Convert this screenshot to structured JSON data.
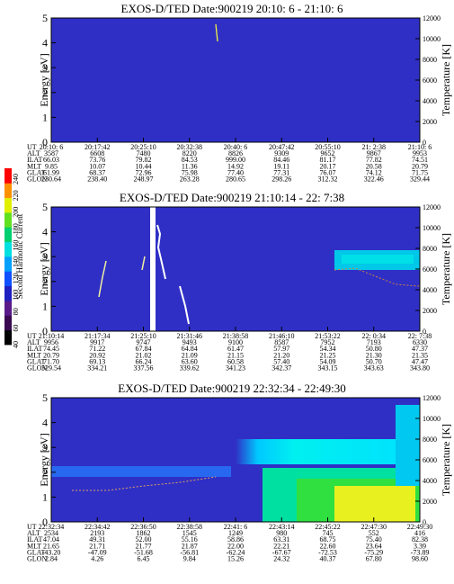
{
  "colorbar": {
    "title": "Second Harmonic Current",
    "ticks": [
      "40",
      "60",
      "80",
      "100",
      "120",
      "140",
      "160",
      "180",
      "200",
      "220",
      "240"
    ],
    "colors": [
      "#000000",
      "#3a0a50",
      "#5a1a8a",
      "#2020c0",
      "#1050ff",
      "#00a0ff",
      "#00e0e0",
      "#00d070",
      "#60e020",
      "#e0f000",
      "#ff9000",
      "#ff0000"
    ]
  },
  "panels": [
    {
      "title": "EXOS-D/TED   Date:900219  20:10: 6 - 21:10: 6",
      "ylabel": "Energy [eV]",
      "ylabel_right": "Temperature [K]",
      "bg": "#2f2fc6",
      "row_labels": [
        "UT",
        "ALT",
        "ILAT",
        "MLT",
        "GLAT",
        "GLON"
      ],
      "columns": [
        [
          "20:10: 6",
          "3587",
          "66.03",
          "9.85",
          "61.99",
          "230.64"
        ],
        [
          "20:17:42",
          "6608",
          "73.76",
          "10.07",
          "68.37",
          "238.40"
        ],
        [
          "20:25:10",
          "7480",
          "79.82",
          "10.44",
          "72.96",
          "248.97"
        ],
        [
          "20:32:38",
          "8220",
          "84.53",
          "11.36",
          "75.98",
          "263.28"
        ],
        [
          "20:40: 6",
          "8826",
          "999.00",
          "14.92",
          "77.40",
          "280.65"
        ],
        [
          "20:47:42",
          "9309",
          "84.46",
          "19.11",
          "77.31",
          "298.26"
        ],
        [
          "20:55:10",
          "9652",
          "81.17",
          "20.17",
          "76.07",
          "312.32"
        ],
        [
          "21: 2:38",
          "9867",
          "77.82",
          "20.58",
          "74.12",
          "322.46"
        ],
        [
          "21:10: 6",
          "9953",
          "74.51",
          "20.79",
          "71.75",
          "329.44"
        ]
      ]
    },
    {
      "title": "EXOS-D/TED   Date:900219  21:10:14 - 22: 7:38",
      "ylabel": "Energy [eV]",
      "ylabel_right": "Temperature [K]",
      "bg": "#2f2fc6",
      "row_labels": [
        "UT",
        "ALT",
        "ILAT",
        "MLT",
        "GLAT",
        "GLON"
      ],
      "columns": [
        [
          "21:10:14",
          "9956",
          "74.45",
          "20.79",
          "71.70",
          "329.54"
        ],
        [
          "21:17:34",
          "9917",
          "71.22",
          "20.92",
          "69.13",
          "334.21"
        ],
        [
          "21:25:10",
          "9747",
          "67.84",
          "21.02",
          "66.24",
          "337.56"
        ],
        [
          "21:31:46",
          "9493",
          "64.84",
          "21.09",
          "63.60",
          "339.62"
        ],
        [
          "21:38:58",
          "9100",
          "61.47",
          "21.15",
          "60.58",
          "341.23"
        ],
        [
          "21:46:10",
          "8587",
          "57.97",
          "21.20",
          "57.40",
          "342.37"
        ],
        [
          "21:53:22",
          "7952",
          "54.34",
          "21.25",
          "54.09",
          "343.15"
        ],
        [
          "22: 0:34",
          "7193",
          "50.80",
          "21.30",
          "50.70",
          "343.63"
        ],
        [
          "22: 7:38",
          "6330",
          "47.37",
          "21.35",
          "47.47",
          "343.80"
        ]
      ]
    },
    {
      "title": "EXOS-D/TED   Date:900219  22:32:34 - 22:49:30",
      "ylabel": "Energy [eV]",
      "ylabel_right": "Temperature [K]",
      "bg": "#2f2fc6",
      "row_labels": [
        "UT",
        "ALT",
        "ILAT",
        "MLT",
        "GLAT",
        "GLON"
      ],
      "columns": [
        [
          "22:32:34",
          "2534",
          "47.04",
          "21.65",
          "-43.20",
          "2.84"
        ],
        [
          "22:34:42",
          "2193",
          "49.31",
          "21.71",
          "-47.09",
          "4.26"
        ],
        [
          "22:36:50",
          "1862",
          "52.00",
          "21.77",
          "-51.68",
          "6.45"
        ],
        [
          "22:38:58",
          "1545",
          "55.16",
          "21.87",
          "-56.81",
          "9.84"
        ],
        [
          "22:41: 6",
          "1249",
          "58.86",
          "22.00",
          "-62.24",
          "15.26"
        ],
        [
          "22:43:14",
          "980",
          "63.31",
          "22.21",
          "-67.67",
          "24.32"
        ],
        [
          "22:45:22",
          "745",
          "68.75",
          "22.60",
          "-72.53",
          "40.37"
        ],
        [
          "22:47:30",
          "552",
          "75.40",
          "23.64",
          "-75.29",
          "67.80"
        ],
        [
          "22:49:30",
          "416",
          "82.38",
          "3.39",
          "-73.89",
          "98.60"
        ]
      ]
    }
  ],
  "chart_data": [
    {
      "type": "heatmap",
      "title": "EXOS-D/TED   Date:900219  20:10: 6 - 21:10: 6",
      "ylabel": "Energy [eV]",
      "ylabel_right": "Temperature [K]",
      "ylim": [
        0,
        5
      ],
      "yticks": [
        0,
        1,
        2,
        3,
        4,
        5
      ],
      "ylim_right": [
        0,
        12000
      ],
      "yticks_right": [
        0,
        2000,
        4000,
        6000,
        8000,
        10000,
        12000
      ],
      "x": [
        "20:10: 6",
        "20:17:42",
        "20:25:10",
        "20:32:38",
        "20:40: 6",
        "20:47:42",
        "20:55:10",
        "21: 2:38",
        "21:10: 6"
      ]
    },
    {
      "type": "heatmap",
      "title": "EXOS-D/TED   Date:900219  21:10:14 - 22: 7:38",
      "ylabel": "Energy [eV]",
      "ylabel_right": "Temperature [K]",
      "ylim": [
        0,
        5
      ],
      "yticks": [
        0,
        1,
        2,
        3,
        4,
        5
      ],
      "ylim_right": [
        0,
        12000
      ],
      "yticks_right": [
        0,
        2000,
        4000,
        6000,
        8000,
        10000,
        12000
      ],
      "x": [
        "21:10:14",
        "21:17:34",
        "21:25:10",
        "21:31:46",
        "21:38:58",
        "21:46:10",
        "21:53:22",
        "22: 0:34",
        "22: 7:38"
      ]
    },
    {
      "type": "heatmap",
      "title": "EXOS-D/TED   Date:900219  22:32:34 - 22:49:30",
      "ylabel": "Energy [eV]",
      "ylabel_right": "Temperature [K]",
      "ylim": [
        0,
        5
      ],
      "yticks": [
        0,
        1,
        2,
        3,
        4,
        5
      ],
      "ylim_right": [
        0,
        12000
      ],
      "yticks_right": [
        0,
        2000,
        4000,
        6000,
        8000,
        10000,
        12000
      ],
      "x": [
        "22:32:34",
        "22:34:42",
        "22:36:50",
        "22:38:58",
        "22:41: 6",
        "22:43:14",
        "22:45:22",
        "22:47:30",
        "22:49:30"
      ]
    }
  ]
}
